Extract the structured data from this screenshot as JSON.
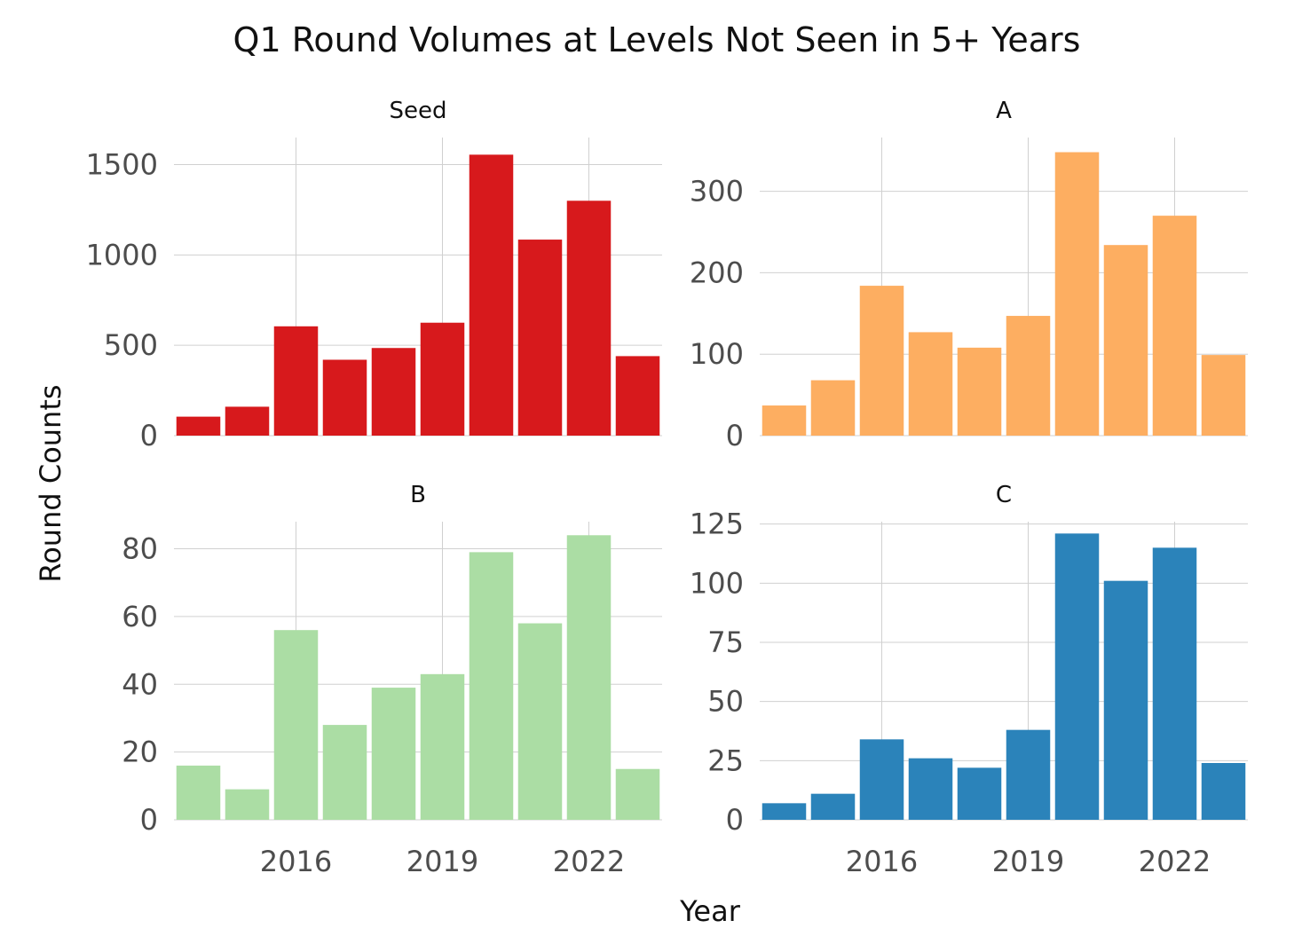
{
  "chart_data": {
    "type": "bar",
    "title": "Q1 Round Volumes at Levels Not Seen in 5+ Years",
    "xlabel": "Year",
    "ylabel": "Round Counts",
    "x": [
      2014,
      2015,
      2016,
      2017,
      2018,
      2019,
      2020,
      2021,
      2022,
      2023
    ],
    "x_ticks": [
      2016,
      2019,
      2022
    ],
    "x_tick_labels": [
      "2016",
      "2019",
      "2022"
    ],
    "xlim": [
      2013.5,
      2023.5
    ],
    "grid": true,
    "legend": "none",
    "facet_layout": "2x2",
    "facets": [
      {
        "name": "Seed",
        "color": "#d7191c",
        "values": [
          105,
          160,
          605,
          420,
          485,
          625,
          1555,
          1085,
          1300,
          440
        ],
        "ylim": [
          0,
          1650
        ],
        "y_ticks": [
          0,
          500,
          1000,
          1500
        ],
        "y_tick_labels": [
          "0",
          "500",
          "1000",
          "1500"
        ]
      },
      {
        "name": "A",
        "color": "#fdae61",
        "values": [
          37,
          68,
          184,
          127,
          108,
          147,
          348,
          234,
          270,
          99
        ],
        "ylim": [
          0,
          366
        ],
        "y_ticks": [
          0,
          100,
          200,
          300
        ],
        "y_tick_labels": [
          "0",
          "100",
          "200",
          "300"
        ]
      },
      {
        "name": "B",
        "color": "#abdda4",
        "values": [
          16,
          9,
          56,
          28,
          39,
          43,
          79,
          58,
          84,
          15
        ],
        "ylim": [
          0,
          88
        ],
        "y_ticks": [
          0,
          20,
          40,
          60,
          80
        ],
        "y_tick_labels": [
          "0",
          "20",
          "40",
          "60",
          "80"
        ]
      },
      {
        "name": "C",
        "color": "#2b83ba",
        "values": [
          7,
          11,
          34,
          26,
          22,
          38,
          121,
          101,
          115,
          24
        ],
        "ylim": [
          0,
          126
        ],
        "y_ticks": [
          0,
          25,
          50,
          75,
          100,
          125
        ],
        "y_tick_labels": [
          "0",
          "25",
          "50",
          "75",
          "100",
          "125"
        ]
      }
    ]
  }
}
